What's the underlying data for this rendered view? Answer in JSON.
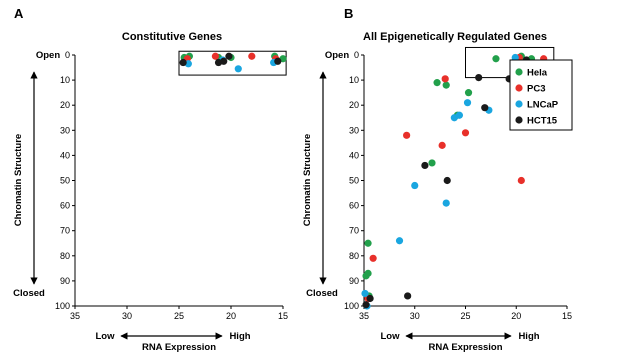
{
  "colors": {
    "Hela": "#22a04b",
    "PC3": "#e8302a",
    "LNCaP": "#1aa6e0",
    "HCT15": "#1a1a1a"
  },
  "chart_data": [
    {
      "panel": "A",
      "type": "scatter",
      "title": "Constitutive Genes",
      "ylabel": "Chromatin Structure",
      "xlabel": "RNA Expression",
      "y_top_label": "Open",
      "y_bottom_label": "Closed",
      "x_left_label": "Low",
      "x_right_label": "High",
      "xlim": [
        35,
        15
      ],
      "ylim": [
        0,
        100
      ],
      "x_ticks": [
        "35",
        "30",
        "25",
        "20",
        "15"
      ],
      "y_ticks": [
        "0",
        "10",
        "20",
        "30",
        "40",
        "50",
        "60",
        "70",
        "80",
        "90",
        "100"
      ],
      "highlight_box": {
        "x": [
          25,
          14.7
        ],
        "y": [
          -1.5,
          8
        ]
      },
      "legend": false,
      "series": [
        {
          "name": "Hela",
          "points": [
            [
              24.5,
              1
            ],
            [
              24.0,
              0.5
            ],
            [
              21.2,
              1
            ],
            [
              20.0,
              1
            ],
            [
              15.8,
              0.5
            ],
            [
              15.0,
              1.5
            ]
          ]
        },
        {
          "name": "PC3",
          "points": [
            [
              24.2,
              1.5
            ],
            [
              21.5,
              0.5
            ],
            [
              18.0,
              0.5
            ],
            [
              15.7,
              1.5
            ]
          ]
        },
        {
          "name": "LNCaP",
          "points": [
            [
              24.1,
              3.5
            ],
            [
              20.8,
              2
            ],
            [
              19.3,
              5.5
            ],
            [
              15.9,
              3
            ]
          ]
        },
        {
          "name": "HCT15",
          "points": [
            [
              24.6,
              3
            ],
            [
              21.2,
              3
            ],
            [
              20.7,
              2.5
            ],
            [
              20.2,
              0.5
            ],
            [
              15.5,
              2.5
            ]
          ]
        }
      ]
    },
    {
      "panel": "B",
      "type": "scatter",
      "title": "All Epigenetically Regulated Genes",
      "ylabel": "Chromatin Structure",
      "xlabel": "RNA Expression",
      "y_top_label": "Open",
      "y_bottom_label": "Closed",
      "x_left_label": "Low",
      "x_right_label": "High",
      "xlim": [
        35,
        15
      ],
      "ylim": [
        0,
        100
      ],
      "x_ticks": [
        "35",
        "30",
        "25",
        "20",
        "15"
      ],
      "y_ticks": [
        "0",
        "10",
        "20",
        "30",
        "40",
        "50",
        "60",
        "70",
        "80",
        "90",
        "100"
      ],
      "highlight_box": {
        "x": [
          25,
          16.3
        ],
        "y": [
          -3,
          9
        ]
      },
      "legend": true,
      "legend_position": "right",
      "series": [
        {
          "name": "Hela",
          "points": [
            [
              22.0,
              1.5
            ],
            [
              20.1,
              2
            ],
            [
              19.5,
              0.5
            ],
            [
              20.0,
              4
            ],
            [
              18.5,
              1.5
            ],
            [
              27.8,
              11
            ],
            [
              26.9,
              12
            ],
            [
              25.8,
              24
            ],
            [
              24.7,
              15
            ],
            [
              28.3,
              43
            ],
            [
              34.6,
              75
            ],
            [
              34.6,
              87
            ],
            [
              34.8,
              88
            ],
            [
              34.5,
              96
            ]
          ]
        },
        {
          "name": "PC3",
          "points": [
            [
              19.7,
              1
            ],
            [
              17.3,
              1.5
            ],
            [
              27.0,
              9.5
            ],
            [
              30.8,
              32
            ],
            [
              27.3,
              36
            ],
            [
              25.0,
              31
            ],
            [
              19.5,
              50
            ],
            [
              34.1,
              81
            ],
            [
              34.6,
              97
            ]
          ]
        },
        {
          "name": "LNCaP",
          "points": [
            [
              20.1,
              1
            ],
            [
              20.2,
              3
            ],
            [
              26.1,
              25
            ],
            [
              25.6,
              24
            ],
            [
              22.7,
              22
            ],
            [
              24.8,
              19
            ],
            [
              30.0,
              52
            ],
            [
              26.9,
              59
            ],
            [
              31.5,
              74
            ],
            [
              34.9,
              95
            ],
            [
              34.7,
              100
            ]
          ]
        },
        {
          "name": "HCT15",
          "points": [
            [
              19.0,
              2
            ],
            [
              20.7,
              9.5
            ],
            [
              23.7,
              9
            ],
            [
              23.1,
              21
            ],
            [
              29.0,
              44
            ],
            [
              26.8,
              50
            ],
            [
              34.4,
              97
            ],
            [
              34.8,
              99.5
            ],
            [
              30.7,
              96
            ]
          ]
        }
      ]
    }
  ]
}
